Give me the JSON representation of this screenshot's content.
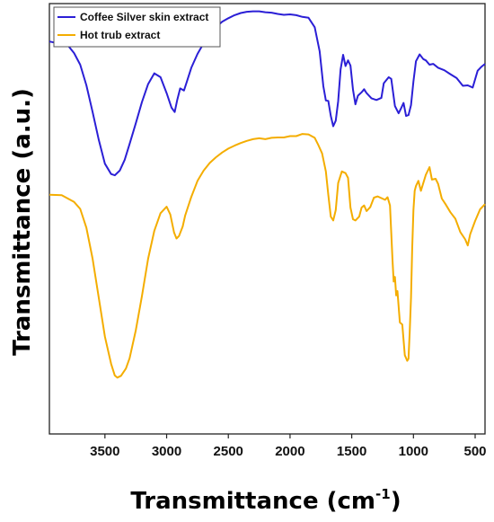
{
  "chart_data": {
    "type": "line",
    "xlabel": "Transmittance (cm",
    "xlabel_sup": "-1",
    "xlabel_end": ")",
    "ylabel": "Transmittance (a.u.)",
    "xlim": [
      3950,
      420
    ],
    "x_reversed": true,
    "ylim": [
      0,
      100
    ],
    "y_ticks_shown": false,
    "grid": false,
    "legend": "top-left",
    "x_ticks": [
      "3500",
      "3000",
      "2500",
      "2000",
      "1500",
      "1000",
      "500"
    ],
    "x_tick_values": [
      3500,
      3000,
      2500,
      2000,
      1500,
      1000,
      500
    ],
    "series": [
      {
        "name": "Coffee Silver skin extract",
        "color": "#2b1fd6",
        "x": [
          3950,
          3800,
          3750,
          3700,
          3650,
          3600,
          3550,
          3500,
          3450,
          3420,
          3380,
          3340,
          3300,
          3250,
          3200,
          3150,
          3100,
          3050,
          3000,
          2960,
          2935,
          2915,
          2890,
          2860,
          2840,
          2800,
          2750,
          2700,
          2650,
          2600,
          2550,
          2500,
          2450,
          2400,
          2350,
          2300,
          2250,
          2200,
          2150,
          2100,
          2050,
          2000,
          1950,
          1900,
          1850,
          1800,
          1760,
          1730,
          1710,
          1690,
          1670,
          1650,
          1630,
          1610,
          1590,
          1570,
          1550,
          1530,
          1510,
          1490,
          1470,
          1450,
          1420,
          1400,
          1380,
          1340,
          1300,
          1260,
          1240,
          1200,
          1180,
          1150,
          1120,
          1100,
          1080,
          1060,
          1040,
          1020,
          1000,
          980,
          950,
          920,
          900,
          870,
          840,
          800,
          750,
          700,
          650,
          600,
          560,
          520,
          480,
          450,
          420
        ],
        "values": [
          91.2,
          90.3,
          88.5,
          85.8,
          81.0,
          74.8,
          68.3,
          62.8,
          60.4,
          60.1,
          61.2,
          63.7,
          67.4,
          72.2,
          77.1,
          81.3,
          83.8,
          82.9,
          79.2,
          75.8,
          74.8,
          77.5,
          80.3,
          79.8,
          81.5,
          85.1,
          88.3,
          90.8,
          92.8,
          94.5,
          95.8,
          96.6,
          97.3,
          97.8,
          98.1,
          98.2,
          98.2,
          98.0,
          97.9,
          97.6,
          97.4,
          97.5,
          97.3,
          96.9,
          96.7,
          94.5,
          88.9,
          80.8,
          77.5,
          77.4,
          73.9,
          71.5,
          72.8,
          77.3,
          84.7,
          88.1,
          85.5,
          86.8,
          85.6,
          80.0,
          76.6,
          78.6,
          79.4,
          80.1,
          79.2,
          78.0,
          77.6,
          78.1,
          81.5,
          82.9,
          82.5,
          76.2,
          74.5,
          75.7,
          76.9,
          73.9,
          74.1,
          76.4,
          81.9,
          86.6,
          88.2,
          87.1,
          86.8,
          85.8,
          86.0,
          85.1,
          84.5,
          83.6,
          82.7,
          80.9,
          81.0,
          80.5,
          84.4,
          85.3,
          86.0
        ]
      },
      {
        "name": "Hot trub extract",
        "color": "#f4ad00",
        "x": [
          3950,
          3850,
          3800,
          3750,
          3700,
          3650,
          3600,
          3550,
          3500,
          3450,
          3420,
          3400,
          3370,
          3330,
          3300,
          3250,
          3200,
          3150,
          3100,
          3050,
          3000,
          2970,
          2940,
          2920,
          2900,
          2870,
          2850,
          2800,
          2750,
          2700,
          2650,
          2600,
          2550,
          2500,
          2450,
          2400,
          2350,
          2300,
          2250,
          2200,
          2150,
          2100,
          2050,
          2000,
          1950,
          1900,
          1850,
          1800,
          1770,
          1740,
          1710,
          1690,
          1670,
          1650,
          1630,
          1610,
          1580,
          1550,
          1530,
          1510,
          1490,
          1470,
          1440,
          1420,
          1400,
          1380,
          1350,
          1320,
          1290,
          1260,
          1230,
          1210,
          1190,
          1170,
          1160,
          1150,
          1140,
          1130,
          1110,
          1090,
          1070,
          1050,
          1040,
          1030,
          1020,
          1010,
          1000,
          990,
          980,
          960,
          940,
          920,
          900,
          870,
          850,
          820,
          800,
          770,
          740,
          700,
          660,
          620,
          580,
          560,
          540,
          500,
          460,
          420
        ],
        "values": [
          55.6,
          55.5,
          54.7,
          53.9,
          52.3,
          47.9,
          40.7,
          31.6,
          22.6,
          16.3,
          13.6,
          13.1,
          13.5,
          15.2,
          17.6,
          24.1,
          32.0,
          40.7,
          47.2,
          51.3,
          52.8,
          51.0,
          46.8,
          45.4,
          46.0,
          48.2,
          50.7,
          55.1,
          58.8,
          61.2,
          63.0,
          64.3,
          65.4,
          66.3,
          67.0,
          67.6,
          68.1,
          68.5,
          68.7,
          68.5,
          68.8,
          68.9,
          68.9,
          69.2,
          69.2,
          69.7,
          69.6,
          68.8,
          67.1,
          65.2,
          61.0,
          55.6,
          50.5,
          49.6,
          52.0,
          58.3,
          61.0,
          60.6,
          59.5,
          52.6,
          49.9,
          49.6,
          50.5,
          52.6,
          53.1,
          51.8,
          52.7,
          54.9,
          55.2,
          54.8,
          54.4,
          55.0,
          53.1,
          40.4,
          35.4,
          36.5,
          32.2,
          33.2,
          25.9,
          25.4,
          18.3,
          17.0,
          17.5,
          23.9,
          31.6,
          42.9,
          52.0,
          56.5,
          57.6,
          58.8,
          56.5,
          58.3,
          60.2,
          62.0,
          59.1,
          59.3,
          58.1,
          54.7,
          53.4,
          51.5,
          50.0,
          46.9,
          45.2,
          43.8,
          46.4,
          49.5,
          52.2,
          53.4
        ]
      }
    ]
  }
}
